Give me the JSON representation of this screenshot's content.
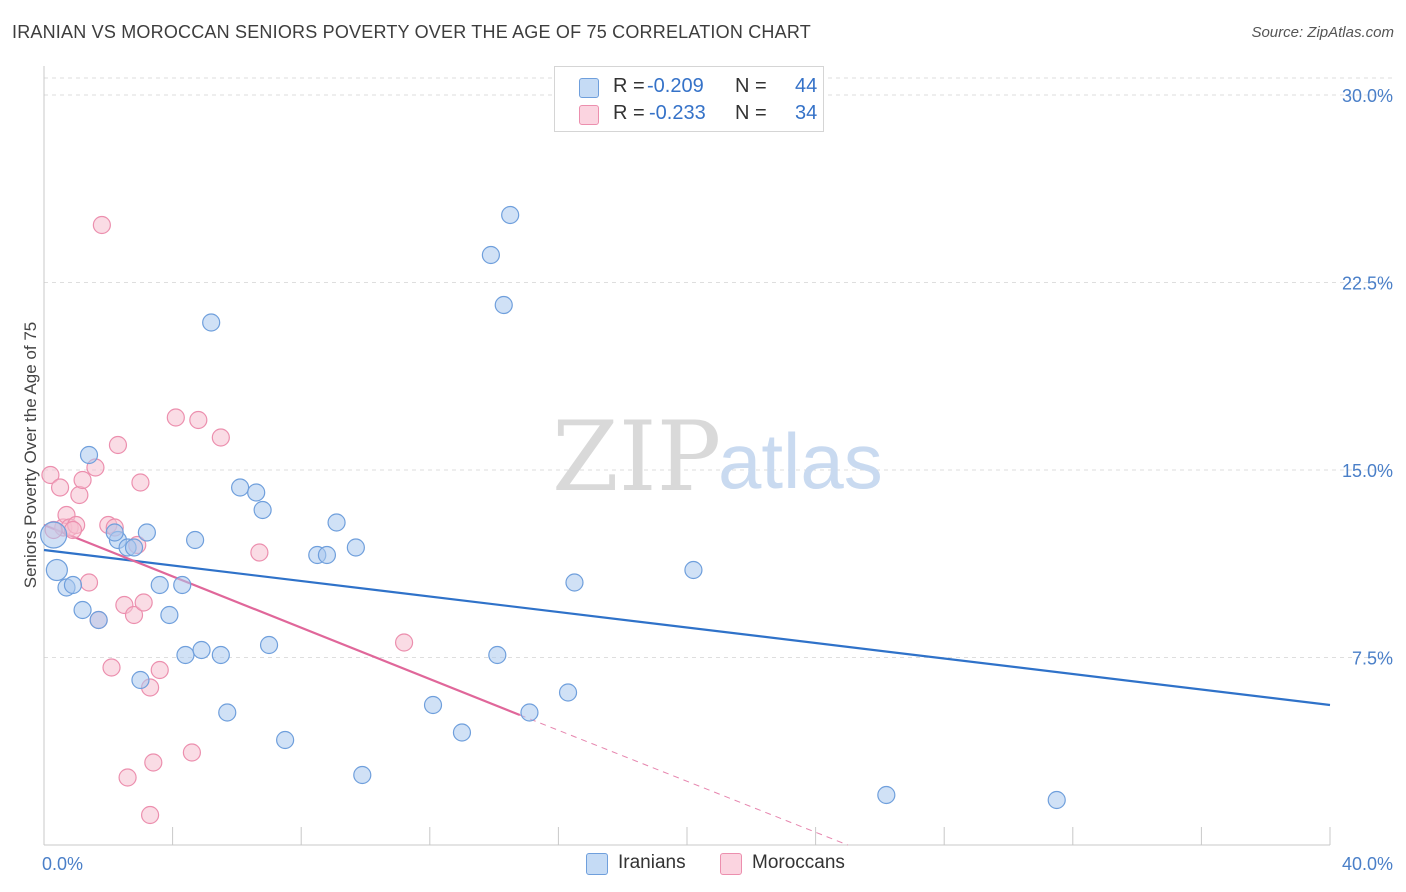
{
  "title": "IRANIAN VS MOROCCAN SENIORS POVERTY OVER THE AGE OF 75 CORRELATION CHART",
  "source": "Source: ZipAtlas.com",
  "watermark": {
    "zip": "ZIP",
    "atlas": "atlas"
  },
  "legend_top": {
    "r_label": "R =",
    "n_label": "N =",
    "rows": [
      {
        "r": "-0.209",
        "n": "44"
      },
      {
        "r": "-0.233",
        "n": "34"
      }
    ]
  },
  "legend_bottom": [
    "Iranians",
    "Moroccans"
  ],
  "colors": {
    "iranian_fill": "#a9c8ee",
    "iranian_stroke": "#6f9fdc",
    "iranian_line": "#2f72c9",
    "moroccan_fill": "#f6bfd0",
    "moroccan_stroke": "#ec8fae",
    "moroccan_line": "#e0679a",
    "tick": "#4a7fc8"
  },
  "chart_data": {
    "type": "scatter",
    "title": "IRANIAN VS MOROCCAN SENIORS POVERTY OVER THE AGE OF 75 CORRELATION CHART",
    "xlabel": "",
    "ylabel": "Seniors Poverty Over the Age of 75",
    "xlim": [
      0,
      40
    ],
    "ylim": [
      0,
      31
    ],
    "x_tick_labels": [
      "0.0%",
      "40.0%"
    ],
    "y_ticks": [
      7.5,
      15.0,
      22.5,
      30.0
    ],
    "y_tick_labels": [
      "7.5%",
      "15.0%",
      "22.5%",
      "30.0%"
    ],
    "grid": true,
    "legend_placement": "top-center",
    "series": [
      {
        "name": "Iranians",
        "r": -0.209,
        "n": 44,
        "points": [
          [
            0.3,
            12.4
          ],
          [
            0.4,
            11.0
          ],
          [
            0.7,
            10.3
          ],
          [
            0.9,
            10.4
          ],
          [
            1.2,
            9.4
          ],
          [
            1.7,
            9.0
          ],
          [
            1.4,
            15.6
          ],
          [
            2.3,
            12.2
          ],
          [
            2.2,
            12.5
          ],
          [
            2.6,
            11.9
          ],
          [
            3.2,
            12.5
          ],
          [
            3.6,
            10.4
          ],
          [
            3.9,
            9.2
          ],
          [
            4.3,
            10.4
          ],
          [
            4.7,
            12.2
          ],
          [
            4.4,
            7.6
          ],
          [
            4.9,
            7.8
          ],
          [
            5.2,
            20.9
          ],
          [
            5.5,
            7.6
          ],
          [
            5.7,
            5.3
          ],
          [
            6.1,
            14.3
          ],
          [
            6.6,
            14.1
          ],
          [
            6.8,
            13.4
          ],
          [
            7.0,
            8.0
          ],
          [
            7.5,
            4.2
          ],
          [
            8.5,
            11.6
          ],
          [
            8.8,
            11.6
          ],
          [
            9.1,
            12.9
          ],
          [
            9.7,
            11.9
          ],
          [
            9.9,
            2.8
          ],
          [
            12.1,
            5.6
          ],
          [
            13.0,
            4.5
          ],
          [
            13.9,
            23.6
          ],
          [
            14.1,
            7.6
          ],
          [
            14.3,
            21.6
          ],
          [
            14.5,
            25.2
          ],
          [
            15.1,
            5.3
          ],
          [
            16.3,
            6.1
          ],
          [
            16.5,
            10.5
          ],
          [
            20.2,
            11.0
          ],
          [
            26.2,
            2.0
          ],
          [
            31.5,
            1.8
          ],
          [
            3.0,
            6.6
          ],
          [
            2.8,
            11.9
          ]
        ],
        "trend": {
          "x": [
            0,
            40
          ],
          "y": [
            11.8,
            5.6
          ]
        }
      },
      {
        "name": "Moroccans",
        "r": -0.233,
        "n": 34,
        "points": [
          [
            0.2,
            14.8
          ],
          [
            0.5,
            14.3
          ],
          [
            0.6,
            12.7
          ],
          [
            0.7,
            13.2
          ],
          [
            0.8,
            12.7
          ],
          [
            1.0,
            12.8
          ],
          [
            1.1,
            14.0
          ],
          [
            1.2,
            14.6
          ],
          [
            1.4,
            10.5
          ],
          [
            1.6,
            15.1
          ],
          [
            1.7,
            9.0
          ],
          [
            1.8,
            24.8
          ],
          [
            2.0,
            12.8
          ],
          [
            2.2,
            12.7
          ],
          [
            2.1,
            7.1
          ],
          [
            2.3,
            16.0
          ],
          [
            2.5,
            9.6
          ],
          [
            2.6,
            2.7
          ],
          [
            2.8,
            9.2
          ],
          [
            2.9,
            12.0
          ],
          [
            3.0,
            14.5
          ],
          [
            3.1,
            9.7
          ],
          [
            3.3,
            6.3
          ],
          [
            3.4,
            3.3
          ],
          [
            3.6,
            7.0
          ],
          [
            3.3,
            1.2
          ],
          [
            4.1,
            17.1
          ],
          [
            4.6,
            3.7
          ],
          [
            4.8,
            17.0
          ],
          [
            5.5,
            16.3
          ],
          [
            6.7,
            11.7
          ],
          [
            11.2,
            8.1
          ],
          [
            0.3,
            12.6
          ],
          [
            0.9,
            12.6
          ]
        ],
        "trend": {
          "x": [
            0,
            14.8
          ],
          "y": [
            12.8,
            5.2
          ]
        },
        "trend_extension": {
          "x": [
            14.8,
            25.0
          ],
          "y": [
            5.2,
            0
          ]
        }
      }
    ]
  }
}
